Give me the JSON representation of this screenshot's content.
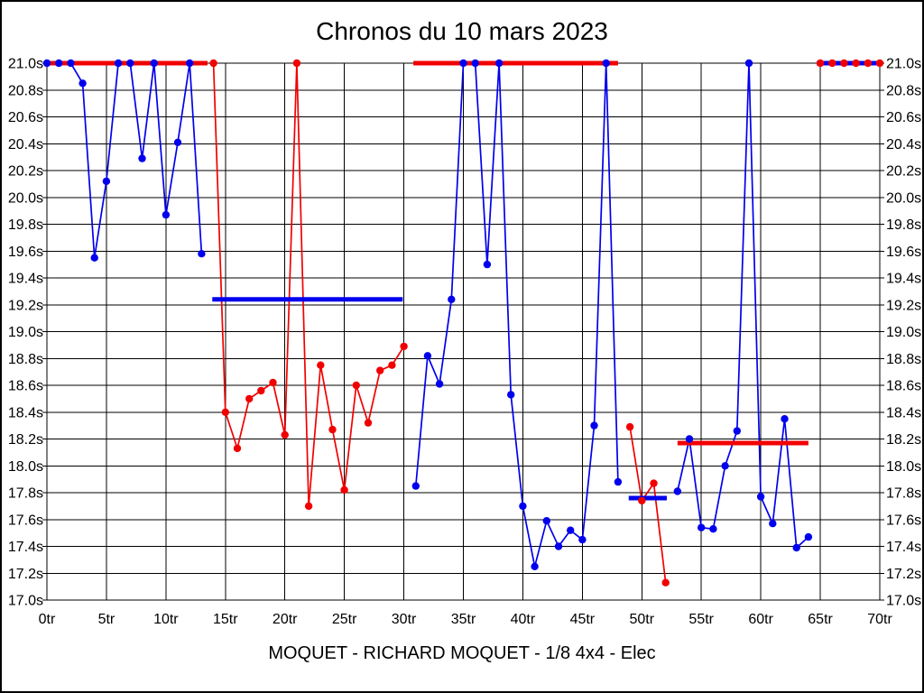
{
  "chart_data": {
    "type": "line",
    "title": "Chronos du 10 mars 2023",
    "footer_label": "MOQUET - RICHARD MOQUET - 1/8 4x4 - Elec",
    "x_unit": "tr",
    "y_unit": "s",
    "xlim": [
      0,
      70
    ],
    "ylim": [
      17.0,
      21.0
    ],
    "x_tick_step": 5,
    "y_tick_step": 0.2,
    "grid": true,
    "legend": "none",
    "x_tick_labels": [
      "0tr",
      "5tr",
      "10tr",
      "15tr",
      "20tr",
      "25tr",
      "30tr",
      "35tr",
      "40tr",
      "45tr",
      "50tr",
      "55tr",
      "60tr",
      "65tr",
      "70tr"
    ],
    "y_tick_labels": [
      "21.0s",
      "20.8s",
      "20.6s",
      "20.4s",
      "20.2s",
      "20.0s",
      "19.8s",
      "19.6s",
      "19.4s",
      "19.2s",
      "19.0s",
      "18.8s",
      "18.6s",
      "18.4s",
      "18.2s",
      "18.0s",
      "17.8s",
      "17.6s",
      "17.4s",
      "17.2s",
      "17.0s"
    ],
    "colors": {
      "blue_series": "#0000ee",
      "red_series": "#f20000",
      "grid": "#000000",
      "background": "#ffffff"
    },
    "series": [
      {
        "name": "blue-stint-1",
        "color": "#0000ee",
        "points": [
          [
            0,
            21.0
          ],
          [
            1,
            21.0
          ],
          [
            2,
            21.0
          ],
          [
            3,
            20.85
          ],
          [
            4,
            19.55
          ],
          [
            5,
            20.12
          ],
          [
            6,
            21.0
          ],
          [
            7,
            21.0
          ],
          [
            8,
            20.29
          ],
          [
            9,
            21.0
          ],
          [
            10,
            19.87
          ],
          [
            11,
            20.41
          ],
          [
            12,
            21.0
          ],
          [
            13,
            19.58
          ]
        ]
      },
      {
        "name": "red-stint-1",
        "color": "#f20000",
        "points": [
          [
            14,
            21.0
          ],
          [
            15,
            18.4
          ],
          [
            16,
            18.13
          ],
          [
            17,
            18.5
          ],
          [
            18,
            18.56
          ],
          [
            19,
            18.62
          ],
          [
            20,
            18.23
          ],
          [
            21,
            21.0
          ],
          [
            22,
            17.7
          ],
          [
            23,
            18.75
          ],
          [
            24,
            18.27
          ],
          [
            25,
            17.82
          ],
          [
            26,
            18.6
          ],
          [
            27,
            18.32
          ],
          [
            28,
            18.71
          ],
          [
            29,
            18.75
          ],
          [
            30,
            18.89
          ]
        ]
      },
      {
        "name": "blue-stint-2",
        "color": "#0000ee",
        "points": [
          [
            31,
            17.85
          ],
          [
            32,
            18.82
          ],
          [
            33,
            18.61
          ],
          [
            34,
            19.24
          ],
          [
            35,
            21.0
          ],
          [
            36,
            21.0
          ],
          [
            37,
            19.5
          ],
          [
            38,
            21.0
          ],
          [
            39,
            18.53
          ],
          [
            40,
            17.7
          ],
          [
            41,
            17.25
          ],
          [
            42,
            17.59
          ],
          [
            43,
            17.4
          ],
          [
            44,
            17.52
          ],
          [
            45,
            17.45
          ],
          [
            46,
            18.3
          ],
          [
            47,
            21.0
          ],
          [
            48,
            17.88
          ]
        ]
      },
      {
        "name": "red-stint-2",
        "color": "#f20000",
        "points": [
          [
            49,
            18.29
          ],
          [
            50,
            17.74
          ],
          [
            51,
            17.87
          ],
          [
            52,
            17.13
          ]
        ]
      },
      {
        "name": "blue-stint-3",
        "color": "#0000ee",
        "points": [
          [
            53,
            17.81
          ],
          [
            54,
            18.2
          ],
          [
            55,
            17.54
          ],
          [
            56,
            17.53
          ],
          [
            57,
            18.0
          ],
          [
            58,
            18.26
          ],
          [
            59,
            21.0
          ],
          [
            60,
            17.77
          ],
          [
            61,
            17.57
          ],
          [
            62,
            18.35
          ],
          [
            63,
            17.39
          ],
          [
            64,
            17.47
          ]
        ]
      },
      {
        "name": "red-stint-3",
        "color": "#f20000",
        "points": [
          [
            65,
            21.0
          ],
          [
            66,
            21.0
          ],
          [
            67,
            21.0
          ],
          [
            68,
            21.0
          ],
          [
            69,
            21.0
          ],
          [
            70,
            21.0
          ]
        ]
      }
    ],
    "stint_average_lines": [
      {
        "color": "#f20000",
        "time": 21.0,
        "from_lap": 0.0,
        "to_lap": 13.5
      },
      {
        "color": "#0000ee",
        "time": 19.24,
        "from_lap": 13.9,
        "to_lap": 29.9
      },
      {
        "color": "#f20000",
        "time": 21.0,
        "from_lap": 30.8,
        "to_lap": 48.0
      },
      {
        "color": "#0000ee",
        "time": 17.76,
        "from_lap": 48.9,
        "to_lap": 52.1
      },
      {
        "color": "#f20000",
        "time": 18.17,
        "from_lap": 53.0,
        "to_lap": 64.0
      },
      {
        "color": "#0000ee",
        "time": 21.0,
        "from_lap": 64.7,
        "to_lap": 70.0
      }
    ]
  }
}
